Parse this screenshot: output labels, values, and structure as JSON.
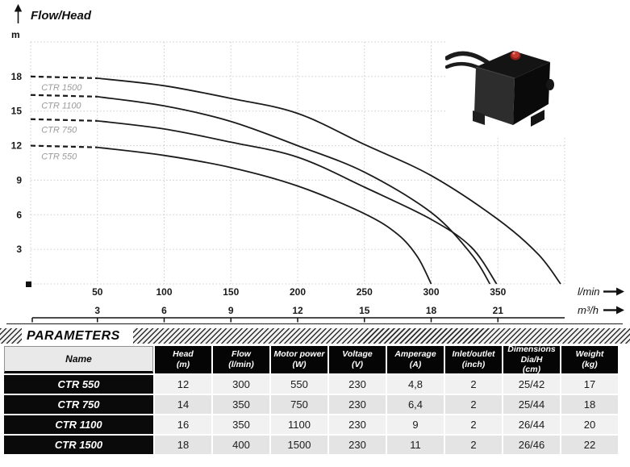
{
  "chart": {
    "title": "Flow/Head",
    "y_unit": "m",
    "icons": {
      "y_axis_arrow": "up-arrow",
      "x_axis_arrow_1": "right-arrow",
      "x_axis_arrow_2": "right-arrow"
    },
    "chart_data": {
      "type": "line",
      "title": "Flow/Head",
      "ylabel": "m",
      "xlabel_primary": "l/min",
      "xlabel_secondary": "m³/h",
      "xlim": [
        0,
        400
      ],
      "ylim": [
        0,
        21
      ],
      "grid": true,
      "y_ticks": [
        3,
        6,
        9,
        12,
        15,
        18
      ],
      "x_ticks_lmin": [
        50,
        100,
        150,
        200,
        250,
        300,
        350
      ],
      "x_ticks_m3h": [
        3,
        6,
        9,
        12,
        15,
        18,
        21
      ],
      "series": [
        {
          "name": "CTR 550",
          "points": [
            [
              0,
              12
            ],
            [
              50,
              11.85
            ],
            [
              100,
              11.15
            ],
            [
              150,
              10.1
            ],
            [
              200,
              8.5
            ],
            [
              250,
              6.1
            ],
            [
              275,
              4.3
            ],
            [
              290,
              2.3
            ],
            [
              300,
              0
            ]
          ]
        },
        {
          "name": "CTR 750",
          "points": [
            [
              0,
              14.3
            ],
            [
              50,
              14.15
            ],
            [
              100,
              13.45
            ],
            [
              150,
              12.3
            ],
            [
              200,
              11.0
            ],
            [
              250,
              8.4
            ],
            [
              300,
              5.6
            ],
            [
              330,
              3.2
            ],
            [
              349,
              0
            ]
          ]
        },
        {
          "name": "CTR 1100",
          "points": [
            [
              0,
              16.4
            ],
            [
              50,
              16.25
            ],
            [
              100,
              15.45
            ],
            [
              150,
              14.1
            ],
            [
              200,
              12.0
            ],
            [
              250,
              9.7
            ],
            [
              300,
              6.2
            ],
            [
              330,
              2.6
            ],
            [
              344,
              0
            ]
          ]
        },
        {
          "name": "CTR 1500",
          "points": [
            [
              0,
              18
            ],
            [
              50,
              17.85
            ],
            [
              100,
              17.2
            ],
            [
              150,
              16.1
            ],
            [
              200,
              14.8
            ],
            [
              250,
              12.1
            ],
            [
              300,
              9.4
            ],
            [
              350,
              5.6
            ],
            [
              380,
              2.6
            ],
            [
              397,
              0
            ]
          ]
        }
      ]
    },
    "product_photo": "black-submersible-pump-with-cable-and-red-cap"
  },
  "parameters": {
    "title": "PARAMETERS"
  },
  "table": {
    "columns": [
      {
        "lines": [
          "Name"
        ]
      },
      {
        "lines": [
          "Head",
          "(m)"
        ]
      },
      {
        "lines": [
          "Flow",
          "(l/min)"
        ]
      },
      {
        "lines": [
          "Motor power",
          "(W)"
        ]
      },
      {
        "lines": [
          "Voltage",
          "(V)"
        ]
      },
      {
        "lines": [
          "Amperage",
          "(A)"
        ]
      },
      {
        "lines": [
          "Inlet/outlet",
          "(inch)"
        ]
      },
      {
        "lines": [
          "Dimensions",
          "Dia/H",
          "(cm)"
        ]
      },
      {
        "lines": [
          "Weight",
          "(kg)"
        ]
      }
    ],
    "rows": [
      {
        "name": "CTR 550",
        "values": [
          "12",
          "300",
          "550",
          "230",
          "4,8",
          "2",
          "25/42",
          "17"
        ]
      },
      {
        "name": "CTR 750",
        "values": [
          "14",
          "350",
          "750",
          "230",
          "6,4",
          "2",
          "25/44",
          "18"
        ]
      },
      {
        "name": "CTR 1100",
        "values": [
          "16",
          "350",
          "1100",
          "230",
          "9",
          "2",
          "26/44",
          "20"
        ]
      },
      {
        "name": "CTR 1500",
        "values": [
          "18",
          "400",
          "1500",
          "230",
          "11",
          "2",
          "26/46",
          "22"
        ]
      }
    ]
  }
}
